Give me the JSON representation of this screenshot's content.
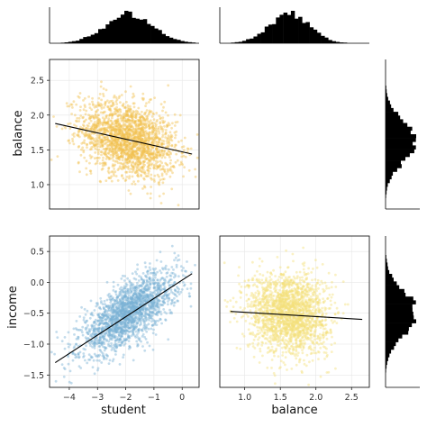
{
  "chart_data": {
    "type": "scatter",
    "kind": "corner-plot",
    "variables": [
      "student",
      "balance",
      "income"
    ],
    "colors": {
      "balance_vs_student": "#f2c24f",
      "income_vs_student": "#7ab2d4",
      "income_vs_balance": "#f3e07a",
      "histogram": "#000000",
      "fit_line": "#000000"
    },
    "grid": true,
    "legend": "none",
    "marginals": {
      "student": {
        "orientation": "top",
        "center": -1.9,
        "spread": 0.85,
        "xlim": [
          -4.7,
          0.6
        ]
      },
      "balance": {
        "orientation": "top",
        "center": 1.62,
        "spread": 0.28,
        "xlim": [
          0.65,
          2.75
        ]
      },
      "income": {
        "orientation": "right",
        "center": -0.5,
        "spread": 0.33,
        "ylim": [
          -1.7,
          0.75
        ]
      },
      "balance_right": {
        "orientation": "right",
        "center": 1.62,
        "spread": 0.28,
        "ylim": [
          0.65,
          2.8
        ]
      }
    },
    "panels": [
      {
        "id": "balance_vs_student",
        "xlabel": "",
        "ylabel": "balance",
        "xlim": [
          -4.7,
          0.6
        ],
        "ylim": [
          0.65,
          2.8
        ],
        "xticks": [],
        "yticks": [
          "1.0",
          "1.5",
          "2.0",
          "2.5"
        ],
        "cloud": {
          "cx": -1.9,
          "cy": 1.65,
          "sx": 0.85,
          "sy": 0.28,
          "corr": -0.3,
          "n": 2000
        },
        "fit_line": {
          "x": [
            -4.5,
            0.35
          ],
          "y": [
            1.88,
            1.44
          ]
        }
      },
      {
        "id": "income_vs_student",
        "xlabel": "student",
        "ylabel": "income",
        "xlim": [
          -4.7,
          0.6
        ],
        "ylim": [
          -1.7,
          0.75
        ],
        "xticks": [
          "-4",
          "-3",
          "-2",
          "-1",
          "0"
        ],
        "yticks": [
          "-1.5",
          "-1.0",
          "-0.5",
          "0.0",
          "0.5"
        ],
        "cloud": {
          "cx": -1.9,
          "cy": -0.5,
          "sx": 0.85,
          "sy": 0.33,
          "corr": 0.7,
          "n": 2000
        },
        "fit_line": {
          "x": [
            -4.5,
            0.35
          ],
          "y": [
            -1.3,
            0.14
          ]
        }
      },
      {
        "id": "income_vs_balance",
        "xlabel": "balance",
        "ylabel": "",
        "xlim": [
          0.65,
          2.75
        ],
        "ylim": [
          -1.7,
          0.75
        ],
        "xticks": [
          "1.0",
          "1.5",
          "2.0",
          "2.5"
        ],
        "yticks": [],
        "cloud": {
          "cx": 1.62,
          "cy": -0.5,
          "sx": 0.28,
          "sy": 0.33,
          "corr": -0.1,
          "n": 2000
        },
        "fit_line": {
          "x": [
            0.8,
            2.65
          ],
          "y": [
            -0.47,
            -0.6
          ]
        }
      }
    ]
  }
}
